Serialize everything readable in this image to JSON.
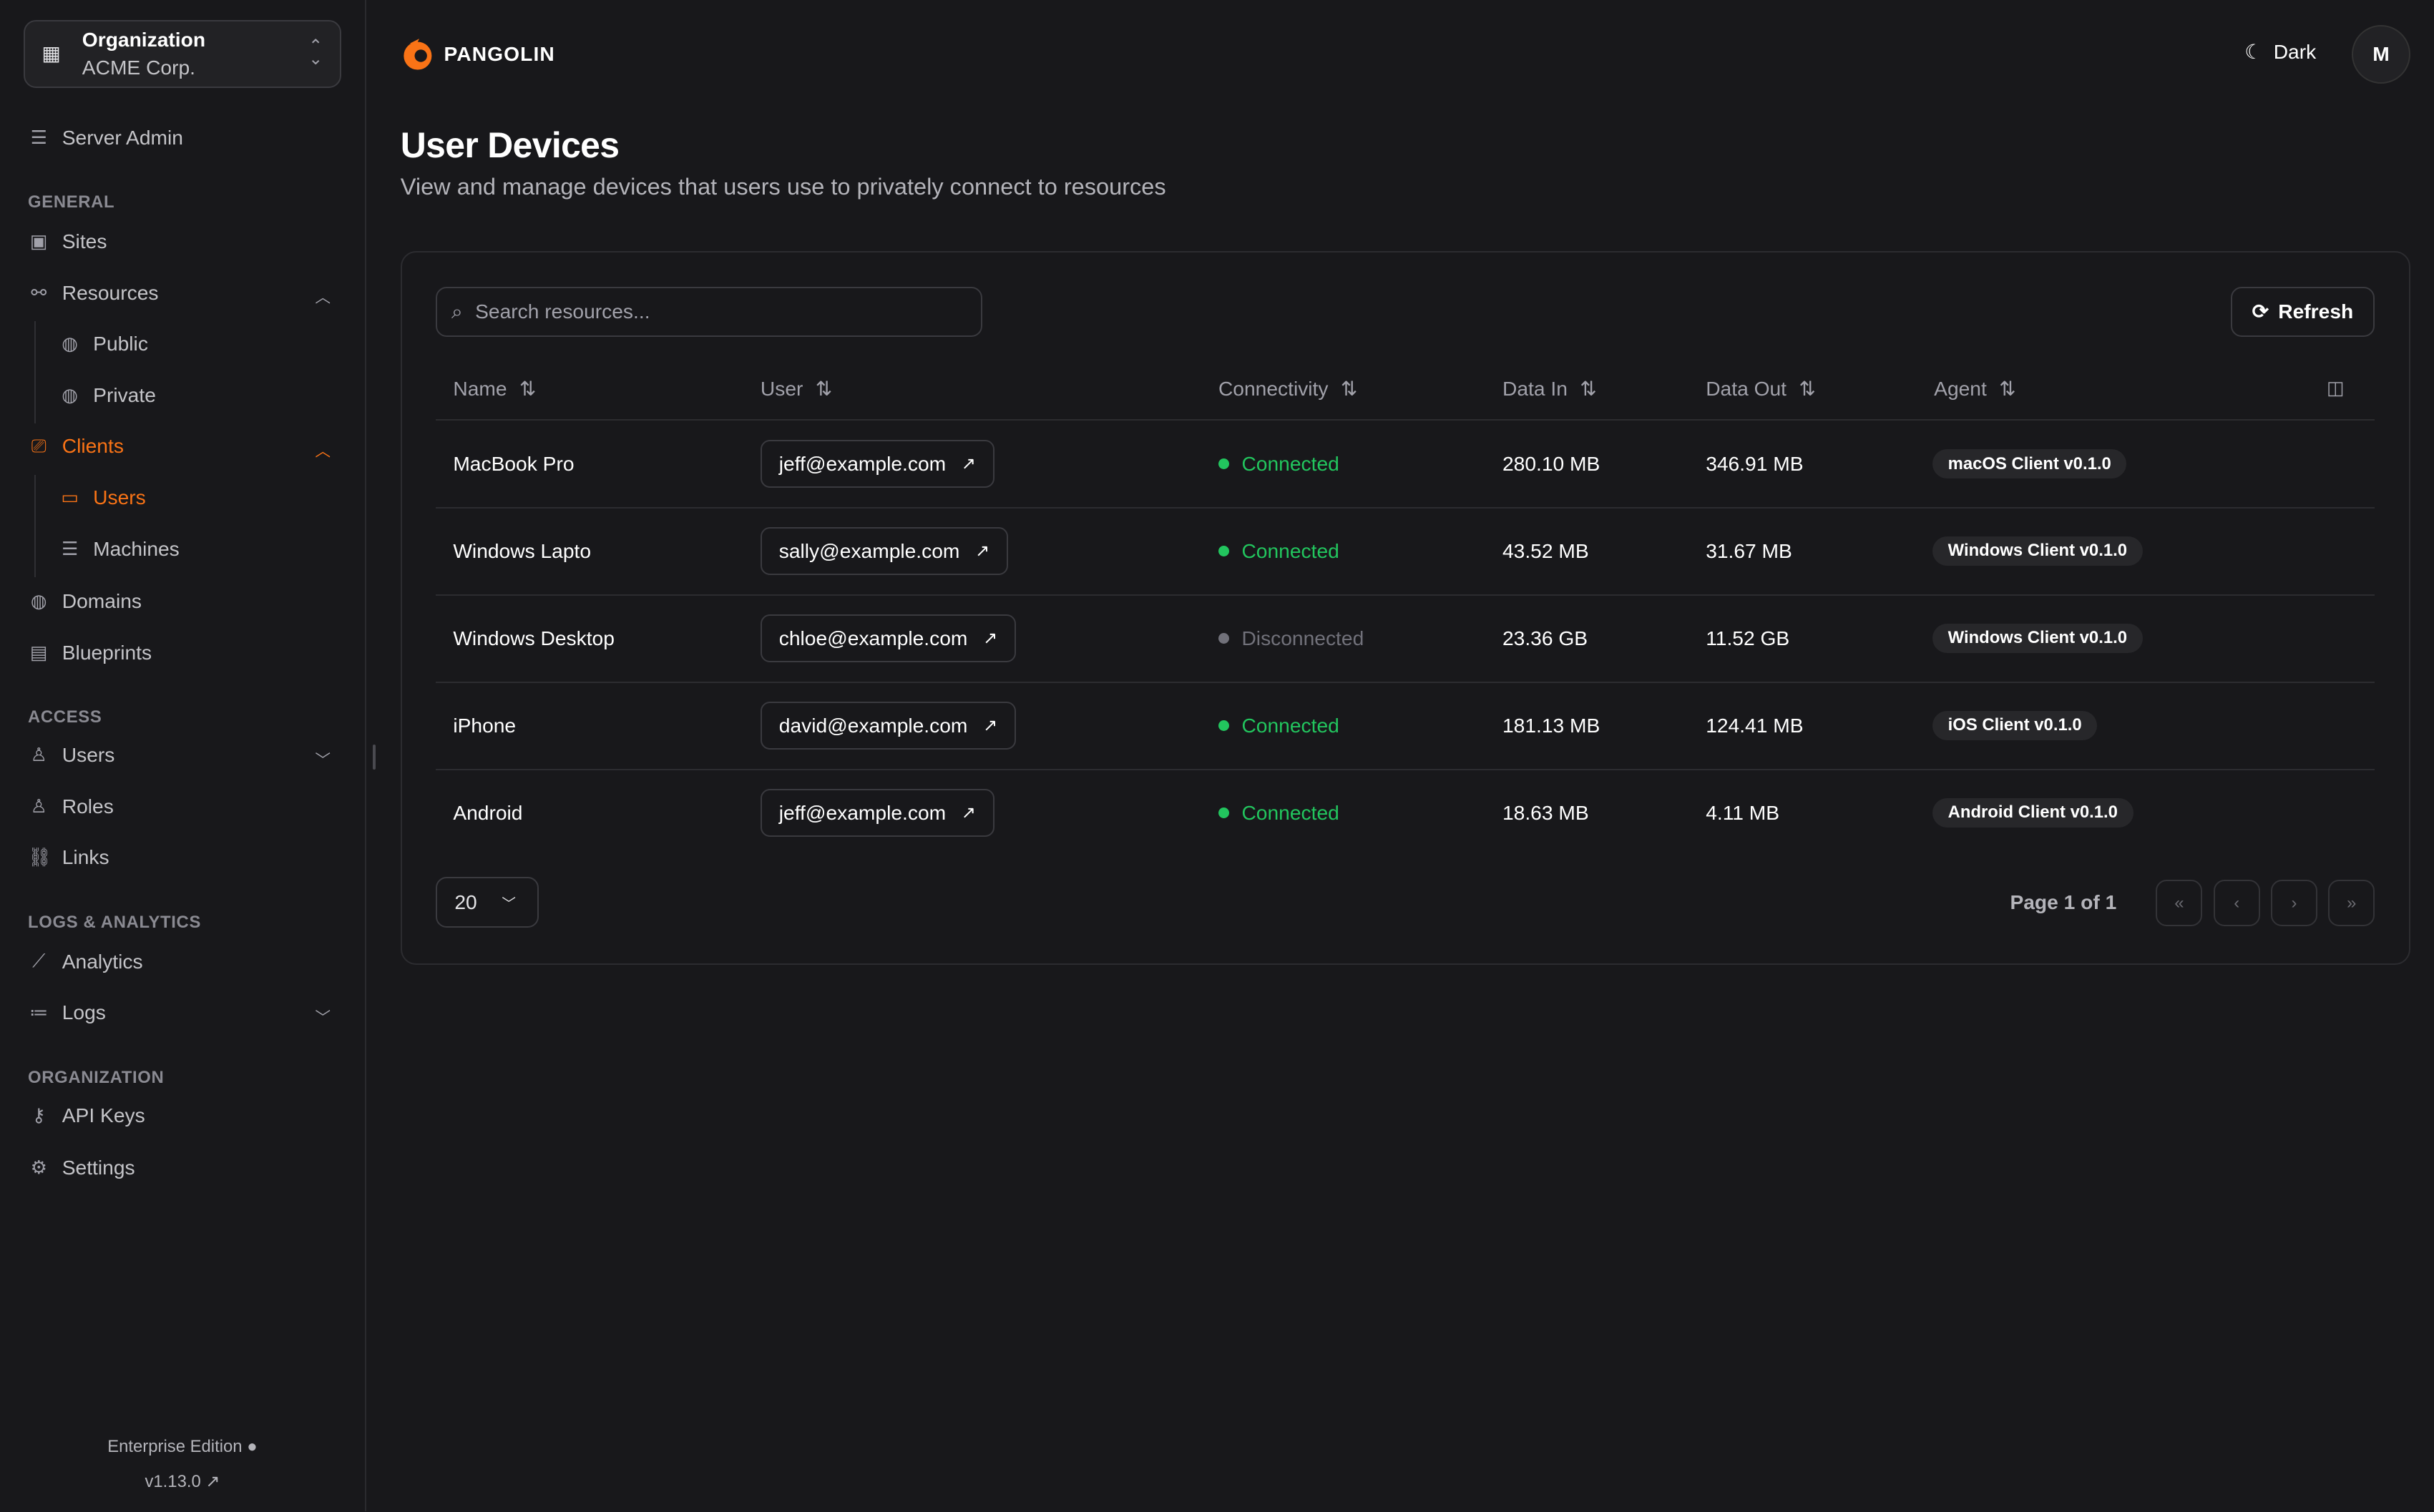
{
  "org": {
    "label": "Organization",
    "name": "ACME Corp."
  },
  "sidebar": {
    "server_admin": "Server Admin",
    "sections": {
      "general": "GENERAL",
      "access": "ACCESS",
      "logs": "LOGS & ANALYTICS",
      "organization": "ORGANIZATION"
    },
    "items": {
      "sites": "Sites",
      "resources": "Resources",
      "public": "Public",
      "private": "Private",
      "clients": "Clients",
      "users": "Users",
      "machines": "Machines",
      "domains": "Domains",
      "blueprints": "Blueprints",
      "access_users": "Users",
      "roles": "Roles",
      "links": "Links",
      "analytics": "Analytics",
      "logs": "Logs",
      "api_keys": "API Keys",
      "settings": "Settings"
    },
    "edition": "Enterprise Edition",
    "version": "v1.13.0"
  },
  "header": {
    "brand": "PANGOLIN",
    "theme": "Dark",
    "avatar": "M"
  },
  "page": {
    "title": "User Devices",
    "description": "View and manage devices that users use to privately connect to resources"
  },
  "toolbar": {
    "search_placeholder": "Search resources...",
    "refresh": "Refresh"
  },
  "table": {
    "columns": [
      "Name",
      "User",
      "Connectivity",
      "Data In",
      "Data Out",
      "Agent"
    ],
    "rows": [
      {
        "name": "MacBook Pro",
        "user": "jeff@example.com",
        "status": "Connected",
        "in": "280.10 MB",
        "out": "346.91 MB",
        "agent": "macOS Client v0.1.0"
      },
      {
        "name": "Windows Lapto",
        "user": "sally@example.com",
        "status": "Connected",
        "in": "43.52 MB",
        "out": "31.67 MB",
        "agent": "Windows Client v0.1.0"
      },
      {
        "name": "Windows Desktop",
        "user": "chloe@example.com",
        "status": "Disconnected",
        "in": "23.36 GB",
        "out": "11.52 GB",
        "agent": "Windows Client v0.1.0"
      },
      {
        "name": "iPhone",
        "user": "david@example.com",
        "status": "Connected",
        "in": "181.13 MB",
        "out": "124.41 MB",
        "agent": "iOS Client v0.1.0"
      },
      {
        "name": "Android",
        "user": "jeff@example.com",
        "status": "Connected",
        "in": "18.63 MB",
        "out": "4.11 MB",
        "agent": "Android Client v0.1.0"
      }
    ]
  },
  "pagination": {
    "page_size": "20",
    "info": "Page 1 of 1"
  },
  "colors": {
    "accent": "#f97316",
    "connected": "#22c55e",
    "disconnected": "#71717a",
    "background": "#18181b"
  }
}
